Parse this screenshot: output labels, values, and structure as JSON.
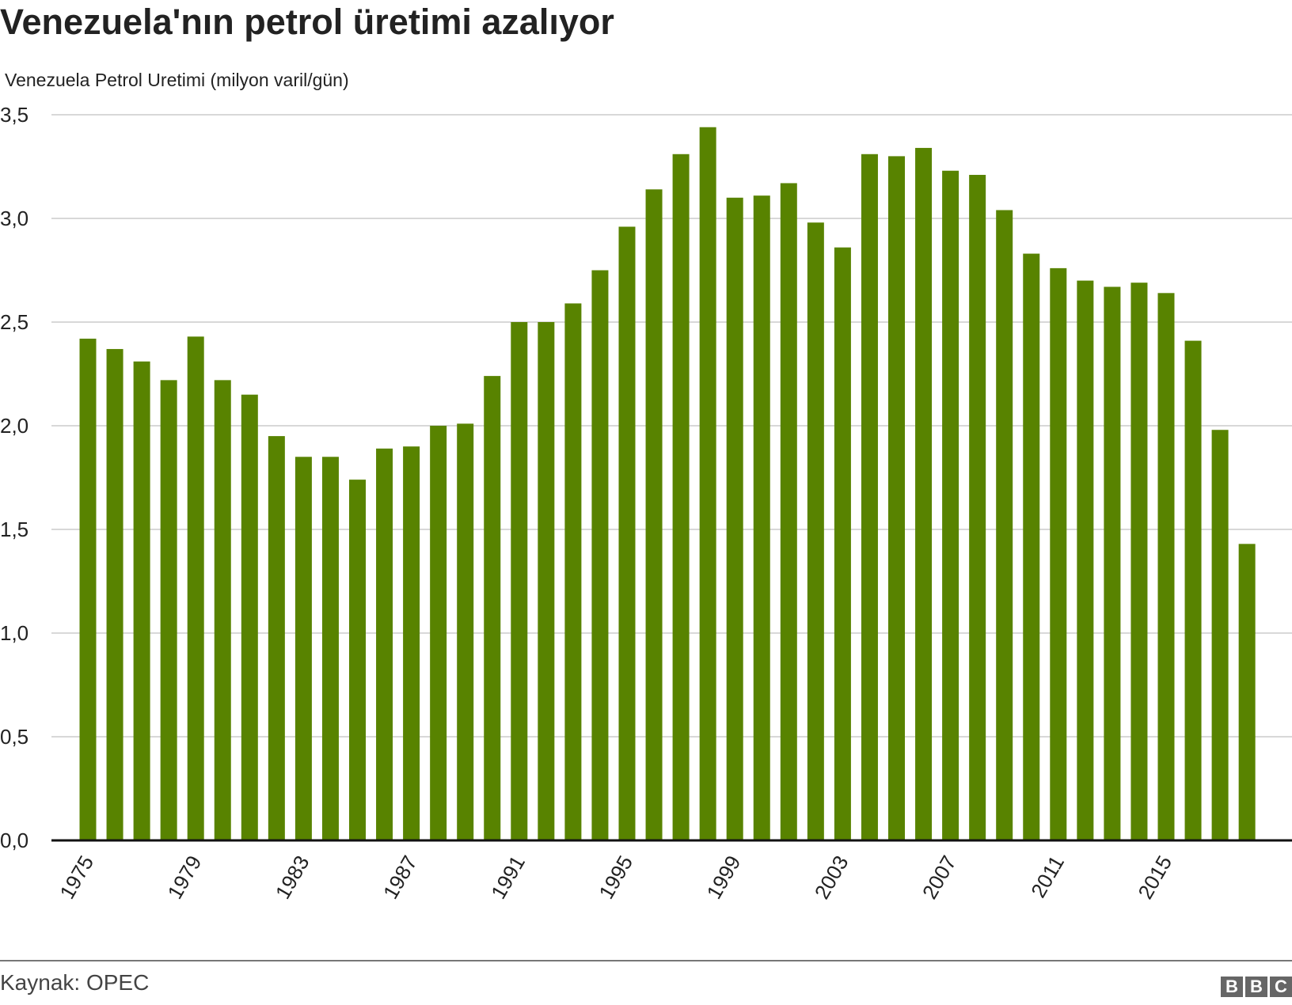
{
  "chart_data": {
    "type": "bar",
    "title": "Venezuela'nın petrol üretimi azalıyor",
    "ylabel": "Venezuela Petrol Uretimi (milyon varil/gün)",
    "xlabel": "",
    "ylim": [
      0,
      3.5
    ],
    "yticks": [
      "0,0",
      "0,5",
      "1,0",
      "1,5",
      "2,0",
      "2,5",
      "3,0",
      "3,5"
    ],
    "ytick_values": [
      0,
      0.5,
      1,
      1.5,
      2,
      2.5,
      3,
      3.5
    ],
    "xtick_labels": [
      "1975",
      "1979",
      "1983",
      "1987",
      "1991",
      "1995",
      "1999",
      "2003",
      "2007",
      "2011",
      "2015"
    ],
    "grid": true,
    "color": "#588300",
    "categories": [
      1975,
      1976,
      1977,
      1978,
      1979,
      1980,
      1981,
      1982,
      1983,
      1984,
      1985,
      1986,
      1987,
      1988,
      1989,
      1990,
      1991,
      1992,
      1993,
      1994,
      1995,
      1996,
      1997,
      1998,
      1999,
      2000,
      2001,
      2002,
      2003,
      2004,
      2005,
      2006,
      2007,
      2008,
      2009,
      2010,
      2011,
      2012,
      2013,
      2014,
      2015,
      2016,
      2017,
      2018
    ],
    "values": [
      2.42,
      2.37,
      2.31,
      2.22,
      2.43,
      2.22,
      2.15,
      1.95,
      1.85,
      1.85,
      1.74,
      1.89,
      1.9,
      2.0,
      2.01,
      2.24,
      2.5,
      2.5,
      2.59,
      2.75,
      2.96,
      3.14,
      3.31,
      3.44,
      3.1,
      3.11,
      3.17,
      2.98,
      2.86,
      3.31,
      3.3,
      3.34,
      3.23,
      3.21,
      3.04,
      2.83,
      2.76,
      2.7,
      2.67,
      2.69,
      2.64,
      2.41,
      1.98,
      1.43
    ]
  },
  "footer": {
    "source": "Kaynak: OPEC",
    "logo": [
      "B",
      "B",
      "C"
    ]
  }
}
